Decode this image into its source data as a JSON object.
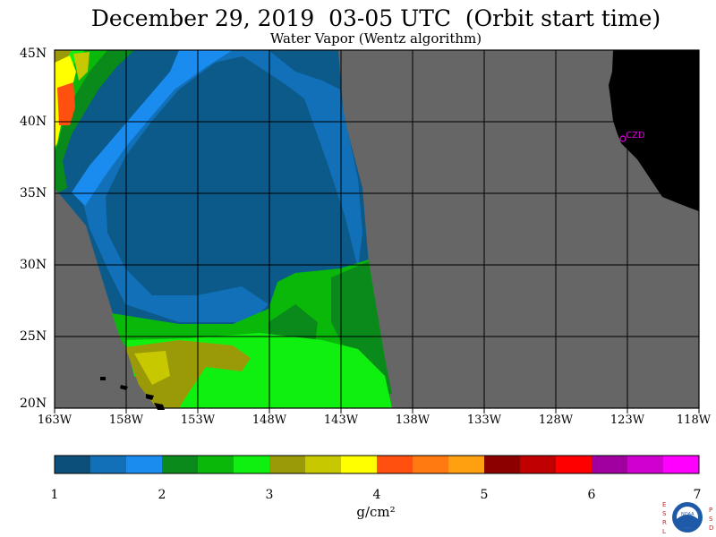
{
  "title": "December 29, 2019  03-05 UTC  (Orbit start time)",
  "subtitle": "Water Vapor (Wentz algorithm)",
  "lat_labels": [
    "45N",
    "40N",
    "35N",
    "30N",
    "25N",
    "20N"
  ],
  "lon_labels": [
    "163W",
    "158W",
    "153W",
    "148W",
    "143W",
    "138W",
    "133W",
    "128W",
    "123W",
    "118W"
  ],
  "city_label": "CZD",
  "colorbar": {
    "ticks": [
      "1",
      "2",
      "3",
      "4",
      "5",
      "6",
      "7"
    ],
    "units": "g/cm²",
    "colors": [
      "#0c4f7a",
      "#1170b8",
      "#1a8cf0",
      "#0a8a1a",
      "#0ab80a",
      "#10f010",
      "#9a9a08",
      "#c8c800",
      "#ffff00",
      "#ff5010",
      "#ff7a10",
      "#ffa010",
      "#8c0000",
      "#c00000",
      "#ff0000",
      "#a000a0",
      "#d000d0",
      "#ff00ff"
    ]
  },
  "colors": {
    "no_data": "#666666",
    "land": "#000000",
    "grid": "#000000"
  },
  "logo": {
    "left_letters": "ESRL",
    "right_letters": "PSD",
    "center": "NOAA"
  }
}
